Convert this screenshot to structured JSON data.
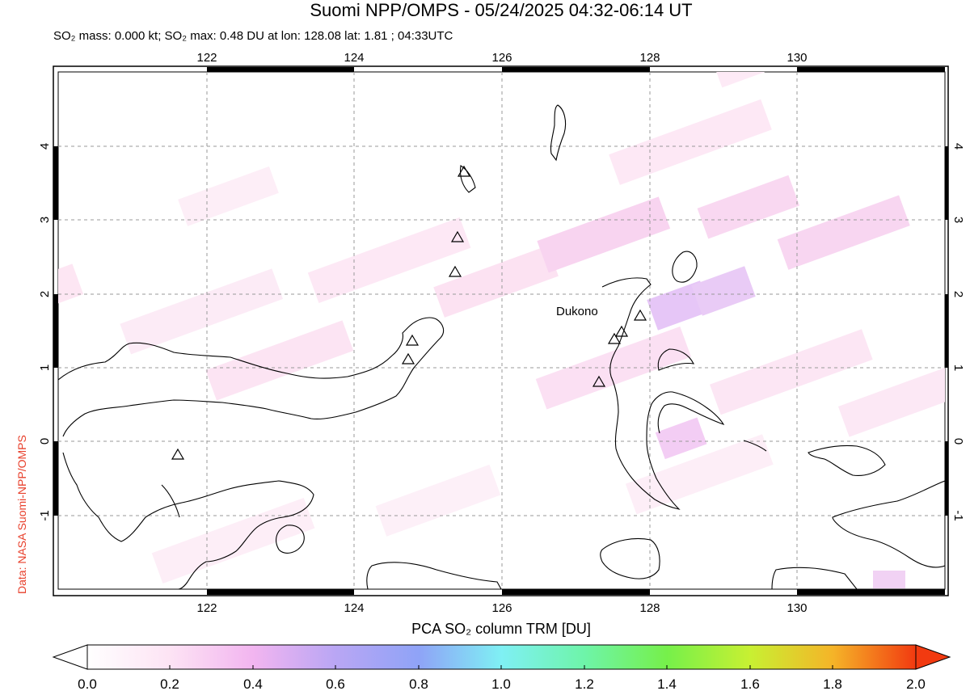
{
  "title": "Suomi NPP/OMPS - 05/24/2025 04:32-06:14 UT",
  "subtitle": "SO₂ mass: 0.000 kt; SO₂ max: 0.48 DU at lon: 128.08 lat: 1.81 ; 04:33UTC",
  "credit": "Data: NASA Suomi-NPP/OMPS",
  "map": {
    "lon_range": [
      119.9,
      132.0
    ],
    "lat_range": [
      -2.0,
      5.0
    ],
    "lon_ticks": [
      "122",
      "124",
      "126",
      "128",
      "130"
    ],
    "lat_ticks": [
      "4",
      "3",
      "2",
      "1",
      "0",
      "-1"
    ],
    "volcano_label": "Dukono"
  },
  "colorbar": {
    "title": "PCA SO₂ column TRM [DU]",
    "labels": [
      "0.0",
      "0.2",
      "0.4",
      "0.6",
      "0.8",
      "1.0",
      "1.2",
      "1.4",
      "1.6",
      "1.8",
      "2.0"
    ]
  }
}
